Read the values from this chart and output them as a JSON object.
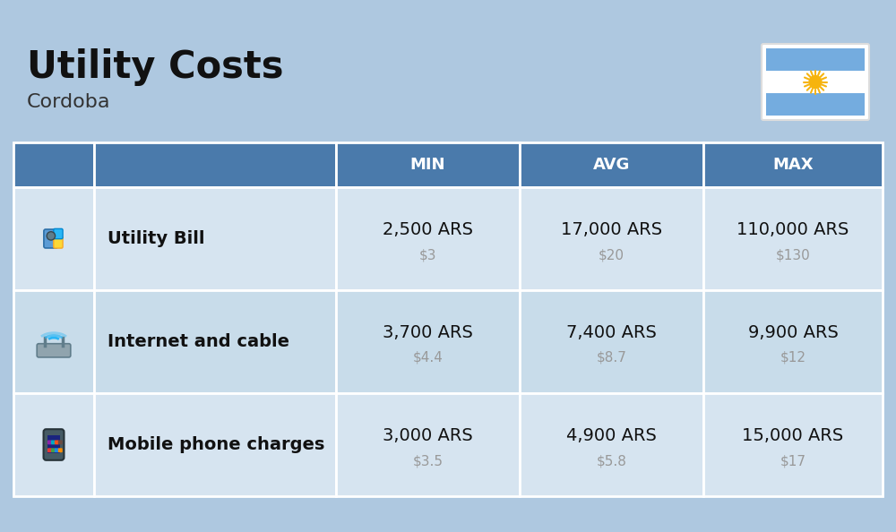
{
  "title": "Utility Costs",
  "subtitle": "Cordoba",
  "background_color": "#aec8e0",
  "header_color": "#4a7aab",
  "header_text_color": "#ffffff",
  "row_color_1": "#d6e4f0",
  "row_color_2": "#c8dcea",
  "divider_color": "#ffffff",
  "col_headers": [
    "MIN",
    "AVG",
    "MAX"
  ],
  "rows": [
    {
      "label": "Utility Bill",
      "min_ars": "2,500 ARS",
      "min_usd": "$3",
      "avg_ars": "17,000 ARS",
      "avg_usd": "$20",
      "max_ars": "110,000 ARS",
      "max_usd": "$130"
    },
    {
      "label": "Internet and cable",
      "min_ars": "3,700 ARS",
      "min_usd": "$4.4",
      "avg_ars": "7,400 ARS",
      "avg_usd": "$8.7",
      "max_ars": "9,900 ARS",
      "max_usd": "$12"
    },
    {
      "label": "Mobile phone charges",
      "min_ars": "3,000 ARS",
      "min_usd": "$3.5",
      "avg_ars": "4,900 ARS",
      "avg_usd": "$5.8",
      "max_ars": "15,000 ARS",
      "max_usd": "$17"
    }
  ],
  "usd_color": "#999999",
  "label_fontsize": 14,
  "value_fontsize": 14,
  "usd_fontsize": 11,
  "header_fontsize": 13,
  "title_fontsize": 30,
  "subtitle_fontsize": 16,
  "flag_stripe_color": "#74acdf",
  "flag_sun_color": "#f6b40e",
  "flag_sun_rays_color": "#f6b40e"
}
